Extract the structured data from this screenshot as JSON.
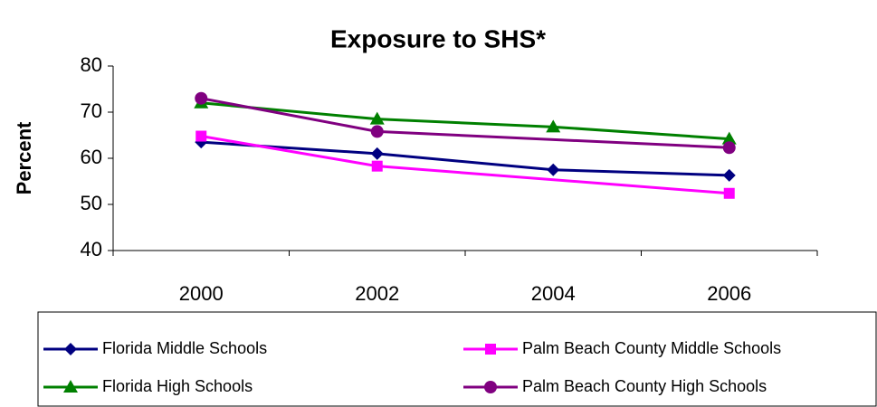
{
  "chart_data": {
    "type": "line",
    "title": "Exposure to SHS*",
    "y_label": "Percent",
    "categories": [
      "2000",
      "2002",
      "2004",
      "2006"
    ],
    "ylim": [
      40,
      80
    ],
    "yticks": [
      40,
      50,
      60,
      70,
      80
    ],
    "grid": false,
    "connect_gaps": true,
    "legend": "bottom",
    "series": [
      {
        "name": "Florida Middle Schools",
        "color": "#000080",
        "marker": "diamond",
        "values": [
          63.5,
          61,
          57.5,
          56.3
        ]
      },
      {
        "name": "Palm Beach County Middle Schools",
        "color": "#ff00ff",
        "marker": "square",
        "values": [
          64.8,
          58.3,
          null,
          52.4
        ]
      },
      {
        "name": "Florida High Schools",
        "color": "#008000",
        "marker": "triangle",
        "values": [
          72,
          68.5,
          66.8,
          64.2
        ]
      },
      {
        "name": "Palm Beach County High Schools",
        "color": "#800080",
        "marker": "circle",
        "values": [
          73,
          65.8,
          null,
          62.3
        ]
      }
    ]
  }
}
